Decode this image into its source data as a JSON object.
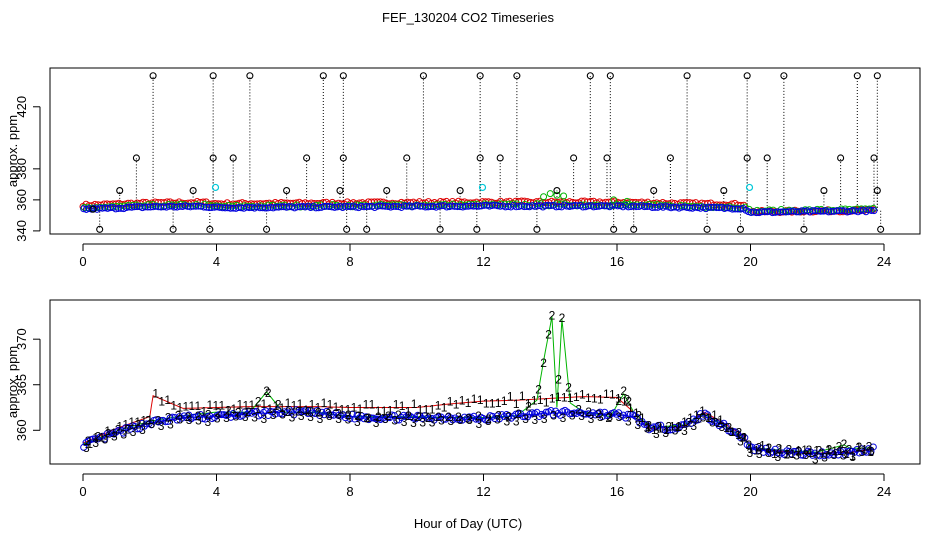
{
  "title": "FEF_130204  CO2 Timeseries",
  "xlabel": "Hour of Day (UTC)",
  "colors": {
    "black": "#000000",
    "red": "#dd0000",
    "green": "#00b400",
    "blue": "#0000dd",
    "cyan": "#00c8d8"
  },
  "chart_data": [
    {
      "type": "scatter",
      "title": "FEF_130204  CO2 Timeseries",
      "xlabel": "",
      "ylabel": "approx. ppm",
      "xlim": [
        -1.8,
        24.6
      ],
      "ylim": [
        338,
        445
      ],
      "xticks": [
        0,
        4,
        8,
        12,
        16,
        20,
        24
      ],
      "yticks": [
        340,
        360,
        380,
        420
      ],
      "grid": false,
      "series": [
        {
          "color": "#000000",
          "marker": "circle",
          "note": "dotted drop lines from 354 baseline",
          "points": [
            [
              0.3,
              354
            ],
            [
              0.5,
              341
            ],
            [
              1.1,
              366
            ],
            [
              1.6,
              387
            ],
            [
              2.1,
              440
            ],
            [
              2.7,
              341
            ],
            [
              3.3,
              366
            ],
            [
              3.8,
              341
            ],
            [
              3.9,
              387
            ],
            [
              3.9,
              440
            ],
            [
              4.5,
              387
            ],
            [
              5.0,
              440
            ],
            [
              5.5,
              341
            ],
            [
              6.1,
              366
            ],
            [
              6.7,
              387
            ],
            [
              7.2,
              440
            ],
            [
              7.7,
              366
            ],
            [
              7.8,
              387
            ],
            [
              7.8,
              440
            ],
            [
              7.9,
              341
            ],
            [
              8.5,
              341
            ],
            [
              9.1,
              366
            ],
            [
              9.7,
              387
            ],
            [
              10.2,
              440
            ],
            [
              10.7,
              341
            ],
            [
              11.3,
              366
            ],
            [
              11.8,
              341
            ],
            [
              11.9,
              387
            ],
            [
              11.9,
              440
            ],
            [
              12.5,
              387
            ],
            [
              13.0,
              440
            ],
            [
              13.6,
              341
            ],
            [
              14.2,
              366
            ],
            [
              14.7,
              387
            ],
            [
              15.2,
              440
            ],
            [
              15.7,
              387
            ],
            [
              15.8,
              440
            ],
            [
              15.9,
              341
            ],
            [
              16.5,
              341
            ],
            [
              17.1,
              366
            ],
            [
              17.6,
              387
            ],
            [
              18.1,
              440
            ],
            [
              18.7,
              341
            ],
            [
              19.2,
              366
            ],
            [
              19.7,
              341
            ],
            [
              19.9,
              387
            ],
            [
              19.9,
              440
            ],
            [
              20.5,
              387
            ],
            [
              21.0,
              440
            ],
            [
              21.6,
              341
            ],
            [
              22.2,
              366
            ],
            [
              22.7,
              387
            ],
            [
              23.2,
              440
            ],
            [
              23.7,
              387
            ],
            [
              23.8,
              440
            ],
            [
              23.8,
              366
            ],
            [
              23.9,
              341
            ]
          ]
        },
        {
          "color": "#dd0000",
          "marker": "circle",
          "range": [
            0,
            23.7
          ]
        },
        {
          "color": "#00b400",
          "marker": "circle",
          "range": [
            0,
            23.7
          ]
        },
        {
          "color": "#0000dd",
          "marker": "circle",
          "range": [
            0,
            23.7
          ]
        },
        {
          "color": "#00c8d8",
          "marker": "circle",
          "points": [
            [
              3.97,
              368
            ],
            [
              11.97,
              368
            ],
            [
              19.97,
              368
            ]
          ]
        }
      ]
    },
    {
      "type": "scatter",
      "title": "",
      "xlabel": "Hour of Day (UTC)",
      "ylabel": "approx. ppm",
      "xlim": [
        -1.8,
        24.6
      ],
      "ylim": [
        356.3,
        374.3
      ],
      "xticks": [
        0,
        4,
        8,
        12,
        16,
        20,
        24
      ],
      "yticks": [
        360,
        365,
        370
      ],
      "grid": false,
      "series": [
        {
          "name": "1",
          "color": "#dd0000",
          "marker": "text-1",
          "points": [
            [
              0,
              358.6
            ],
            [
              1,
              360.2
            ],
            [
              2,
              361.5
            ],
            [
              2.1,
              363.8
            ],
            [
              3,
              362.4
            ],
            [
              4,
              362.5
            ],
            [
              5,
              362.6
            ],
            [
              6,
              362.6
            ],
            [
              7,
              362.6
            ],
            [
              8,
              362.5
            ],
            [
              9,
              362.5
            ],
            [
              10,
              362.5
            ],
            [
              11,
              362.9
            ],
            [
              12,
              363.2
            ],
            [
              13,
              363.3
            ],
            [
              14,
              363.5
            ],
            [
              15,
              363.7
            ],
            [
              16,
              363.6
            ],
            [
              16.5,
              362
            ],
            [
              17,
              360.2
            ],
            [
              18,
              360.4
            ],
            [
              18.6,
              362.0
            ],
            [
              19,
              361.2
            ],
            [
              19.8,
              359.4
            ],
            [
              20,
              358.1
            ],
            [
              21,
              357.7
            ],
            [
              22,
              357.5
            ],
            [
              23,
              357.6
            ],
            [
              23.7,
              357.9
            ]
          ]
        },
        {
          "name": "2",
          "color": "#00b400",
          "marker": "text-2",
          "points": [
            [
              0,
              358.5
            ],
            [
              1,
              359.9
            ],
            [
              2,
              361
            ],
            [
              3,
              361.6
            ],
            [
              4,
              362
            ],
            [
              5,
              362.0
            ],
            [
              5.5,
              364.2
            ],
            [
              6,
              362.0
            ],
            [
              7,
              362.0
            ],
            [
              8,
              361.5
            ],
            [
              9,
              361.5
            ],
            [
              10,
              361.5
            ],
            [
              11,
              361.4
            ],
            [
              12,
              361.4
            ],
            [
              13,
              361.6
            ],
            [
              13.6,
              363.3
            ],
            [
              13.8,
              367.6
            ],
            [
              14.05,
              372.5
            ],
            [
              14.2,
              362.5
            ],
            [
              14.35,
              372.2
            ],
            [
              14.6,
              363.0
            ],
            [
              15,
              362.0
            ],
            [
              15.8,
              361.5
            ],
            [
              16.2,
              364.0
            ],
            [
              16.5,
              362
            ],
            [
              17,
              360.3
            ],
            [
              18,
              360.6
            ],
            [
              18.6,
              361.8
            ],
            [
              19,
              361.0
            ],
            [
              19.8,
              359.2
            ],
            [
              20,
              358.1
            ],
            [
              21,
              357.8
            ],
            [
              22,
              357.6
            ],
            [
              22.8,
              358.4
            ],
            [
              23,
              358.0
            ],
            [
              23.7,
              358.1
            ]
          ]
        },
        {
          "name": "3",
          "color": "#0000dd",
          "marker": "circle+text-3",
          "points": [
            [
              0,
              358.4
            ],
            [
              1,
              359.7
            ],
            [
              2,
              360.8
            ],
            [
              3,
              361.4
            ],
            [
              4,
              361.5
            ],
            [
              5,
              361.8
            ],
            [
              6,
              362.0
            ],
            [
              7,
              361.9
            ],
            [
              8,
              361.5
            ],
            [
              9,
              361.4
            ],
            [
              10,
              361.4
            ],
            [
              11,
              361.4
            ],
            [
              12,
              361.3
            ],
            [
              13,
              361.6
            ],
            [
              14,
              361.9
            ],
            [
              15,
              361.9
            ],
            [
              16,
              361.7
            ],
            [
              16.5,
              361.5
            ],
            [
              17,
              360.2
            ],
            [
              18,
              360.4
            ],
            [
              18.6,
              361.8
            ],
            [
              19,
              360.9
            ],
            [
              19.8,
              359.2
            ],
            [
              20,
              358.0
            ],
            [
              21,
              357.6
            ],
            [
              22,
              357.4
            ],
            [
              23,
              357.6
            ],
            [
              23.7,
              358.0
            ]
          ]
        }
      ]
    }
  ]
}
